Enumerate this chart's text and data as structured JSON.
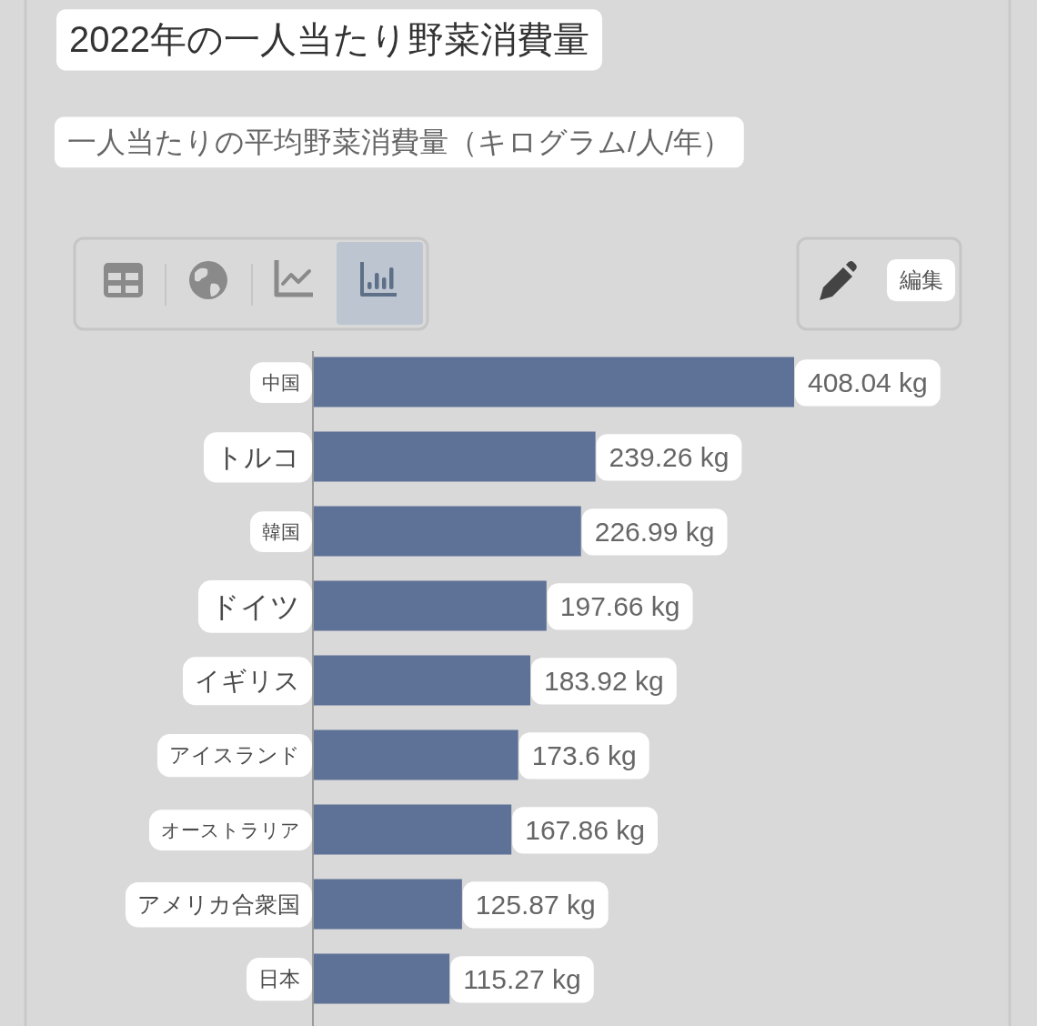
{
  "chart_data": {
    "type": "bar",
    "orientation": "horizontal",
    "title": "2022年の一人当たり野菜消費量",
    "subtitle": "一人当たりの平均野菜消費量（キログラム/人/年）",
    "categories": [
      "中国",
      "トルコ",
      "韓国",
      "ドイツ",
      "イギリス",
      "アイスランド",
      "オーストラリア",
      "アメリカ合衆国",
      "日本"
    ],
    "values": [
      408.04,
      239.26,
      226.99,
      197.66,
      183.92,
      173.6,
      167.86,
      125.87,
      115.27
    ],
    "color": "#5e7196",
    "value_labels": [
      "408.04 kg",
      "239.26 kg",
      "226.99 kg",
      "197.66 kg",
      "183.92 kg",
      "173.6 kg",
      "167.86 kg",
      "125.87 kg",
      "115.27 kg"
    ],
    "annotations": [
      "編集"
    ]
  }
}
